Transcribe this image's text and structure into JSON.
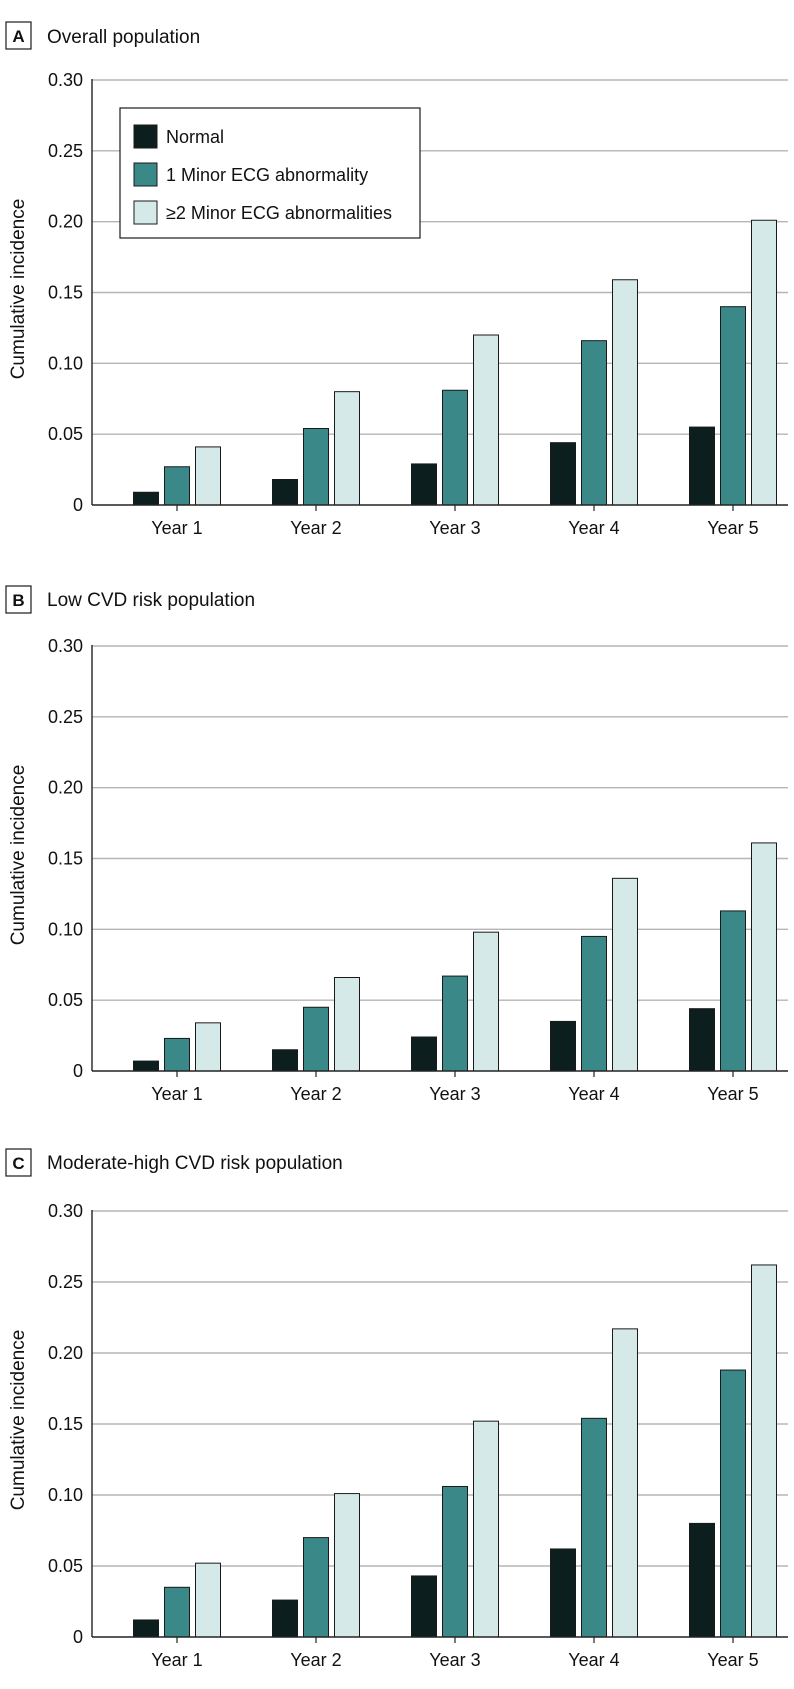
{
  "colors": {
    "normal": "#0d1e1e",
    "minor1": "#3a8888",
    "minor2": "#d6e9e9",
    "grid": "#b5b5b5",
    "axis": "#222222",
    "stroke": "#1a1a1a"
  },
  "legend": {
    "items": [
      {
        "label": "Normal",
        "color_key": "normal"
      },
      {
        "label": "1 Minor ECG abnormality",
        "color_key": "minor1"
      },
      {
        "label": "≥2 Minor ECG abnormalities",
        "color_key": "minor2"
      }
    ]
  },
  "chart_data": [
    {
      "type": "bar",
      "panel_label": "A",
      "title": "Overall population",
      "ylabel": "Cumulative incidence",
      "xlabel": "",
      "ylim": [
        0,
        0.3
      ],
      "yticks": [
        0,
        0.05,
        0.1,
        0.15,
        0.2,
        0.25,
        0.3
      ],
      "ytick_labels": [
        "0",
        "0.05",
        "0.10",
        "0.15",
        "0.20",
        "0.25",
        "0.30"
      ],
      "grid": true,
      "legend_position": "top-left",
      "categories": [
        "Year 1",
        "Year 2",
        "Year 3",
        "Year 4",
        "Year 5"
      ],
      "series": [
        {
          "name": "Normal",
          "values": [
            0.009,
            0.018,
            0.029,
            0.044,
            0.055
          ]
        },
        {
          "name": "1 Minor ECG abnormality",
          "values": [
            0.027,
            0.054,
            0.081,
            0.116,
            0.14
          ]
        },
        {
          "name": "≥2 Minor ECG abnormalities",
          "values": [
            0.041,
            0.08,
            0.12,
            0.159,
            0.201
          ]
        }
      ]
    },
    {
      "type": "bar",
      "panel_label": "B",
      "title": "Low CVD risk population",
      "ylabel": "Cumulative incidence",
      "xlabel": "",
      "ylim": [
        0,
        0.3
      ],
      "yticks": [
        0,
        0.05,
        0.1,
        0.15,
        0.2,
        0.25,
        0.3
      ],
      "ytick_labels": [
        "0",
        "0.05",
        "0.10",
        "0.15",
        "0.20",
        "0.25",
        "0.30"
      ],
      "grid": true,
      "categories": [
        "Year 1",
        "Year 2",
        "Year 3",
        "Year 4",
        "Year 5"
      ],
      "series": [
        {
          "name": "Normal",
          "values": [
            0.007,
            0.015,
            0.024,
            0.035,
            0.044
          ]
        },
        {
          "name": "1 Minor ECG abnormality",
          "values": [
            0.023,
            0.045,
            0.067,
            0.095,
            0.113
          ]
        },
        {
          "name": "≥2 Minor ECG abnormalities",
          "values": [
            0.034,
            0.066,
            0.098,
            0.136,
            0.161
          ]
        }
      ]
    },
    {
      "type": "bar",
      "panel_label": "C",
      "title": "Moderate-high CVD risk population",
      "ylabel": "Cumulative incidence",
      "xlabel": "",
      "ylim": [
        0,
        0.3
      ],
      "yticks": [
        0,
        0.05,
        0.1,
        0.15,
        0.2,
        0.25,
        0.3
      ],
      "ytick_labels": [
        "0",
        "0.05",
        "0.10",
        "0.15",
        "0.20",
        "0.25",
        "0.30"
      ],
      "grid": true,
      "categories": [
        "Year 1",
        "Year 2",
        "Year 3",
        "Year 4",
        "Year 5"
      ],
      "series": [
        {
          "name": "Normal",
          "values": [
            0.012,
            0.026,
            0.043,
            0.062,
            0.08
          ]
        },
        {
          "name": "1 Minor ECG abnormality",
          "values": [
            0.035,
            0.07,
            0.106,
            0.154,
            0.188
          ]
        },
        {
          "name": "≥2 Minor ECG abnormalities",
          "values": [
            0.052,
            0.101,
            0.152,
            0.217,
            0.262
          ]
        }
      ]
    }
  ]
}
